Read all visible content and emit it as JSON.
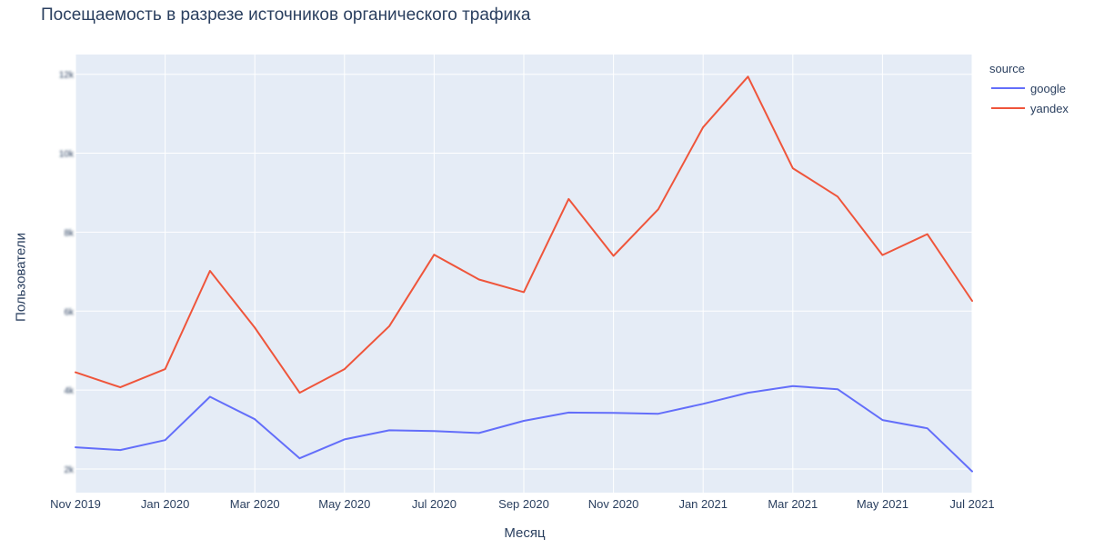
{
  "chart_data": {
    "type": "line",
    "title": "Посещаемость в разрезе источников органического трафика",
    "xlabel": "Месяц",
    "ylabel": "Пользователи",
    "legend_title": "source",
    "legend_position": "top-right",
    "grid": true,
    "x": [
      "2019-11",
      "2019-12",
      "2020-01",
      "2020-02",
      "2020-03",
      "2020-04",
      "2020-05",
      "2020-06",
      "2020-07",
      "2020-08",
      "2020-09",
      "2020-10",
      "2020-11",
      "2020-12",
      "2021-01",
      "2021-02",
      "2021-03",
      "2021-04",
      "2021-05",
      "2021-06",
      "2021-07"
    ],
    "x_tick_labels": [
      "Nov 2019",
      "Jan 2020",
      "Mar 2020",
      "May 2020",
      "Jul 2020",
      "Sep 2020",
      "Nov 2020",
      "Jan 2021",
      "Mar 2021",
      "May 2021",
      "Jul 2021"
    ],
    "x_tick_months": [
      "2019-11",
      "2020-01",
      "2020-03",
      "2020-05",
      "2020-07",
      "2020-09",
      "2020-11",
      "2021-01",
      "2021-03",
      "2021-05",
      "2021-07"
    ],
    "y_tick_labels": [
      "2k",
      "4k",
      "6k",
      "8k",
      "10k",
      "12k"
    ],
    "y_tick_values": [
      2000,
      4000,
      6000,
      8000,
      10000,
      12000
    ],
    "ylim": [
      1400,
      12500
    ],
    "series": [
      {
        "name": "google",
        "color": "#636efa",
        "values": [
          2550,
          2480,
          2730,
          3830,
          3260,
          2270,
          2750,
          2980,
          2960,
          2910,
          3220,
          3430,
          3420,
          3400,
          3650,
          3930,
          4100,
          4020,
          3240,
          3030,
          1940
        ]
      },
      {
        "name": "yandex",
        "color": "#ef553b",
        "values": [
          4450,
          4070,
          4530,
          7020,
          5580,
          3930,
          4530,
          5620,
          7430,
          6800,
          6480,
          8840,
          7400,
          8580,
          10660,
          11940,
          9620,
          8900,
          7420,
          7950,
          6260
        ]
      }
    ]
  }
}
